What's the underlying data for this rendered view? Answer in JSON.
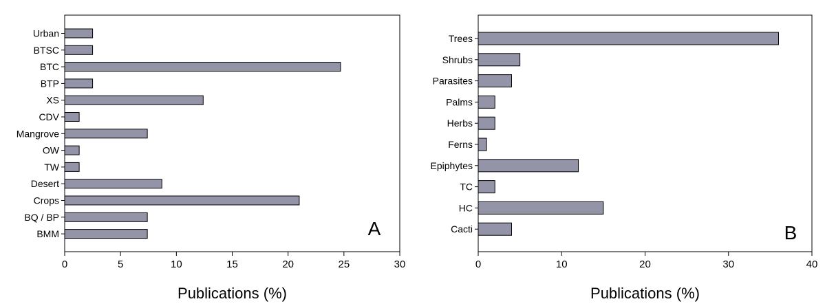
{
  "chart_data": [
    {
      "type": "bar",
      "orientation": "horizontal",
      "panel_label": "A",
      "xlabel": "Publications (%)",
      "ylabel": "",
      "xlim": [
        0,
        30
      ],
      "xticks": [
        0,
        5,
        10,
        15,
        20,
        25,
        30
      ],
      "grid": false,
      "categories": [
        "Urban",
        "BTSC",
        "BTC",
        "BTP",
        "XS",
        "CDV",
        "Mangrove",
        "OW",
        "TW",
        "Desert",
        "Crops",
        "BQ / BP",
        "BMM"
      ],
      "values": [
        2.5,
        2.5,
        24.7,
        2.5,
        12.4,
        1.3,
        7.4,
        1.3,
        1.3,
        8.7,
        21.0,
        7.4,
        7.4
      ],
      "bar_color": "#9494a8"
    },
    {
      "type": "bar",
      "orientation": "horizontal",
      "panel_label": "B",
      "xlabel": "Publications (%)",
      "ylabel": "",
      "xlim": [
        0,
        40
      ],
      "xticks": [
        0,
        10,
        20,
        30,
        40
      ],
      "grid": false,
      "categories": [
        "Trees",
        "Shrubs",
        "Parasites",
        "Palms",
        "Herbs",
        "Ferns",
        "Epiphytes",
        "TC",
        "HC",
        "Cacti"
      ],
      "values": [
        36,
        5,
        4,
        2,
        2,
        1,
        12,
        2,
        15,
        4
      ],
      "bar_color": "#9494a8"
    }
  ]
}
